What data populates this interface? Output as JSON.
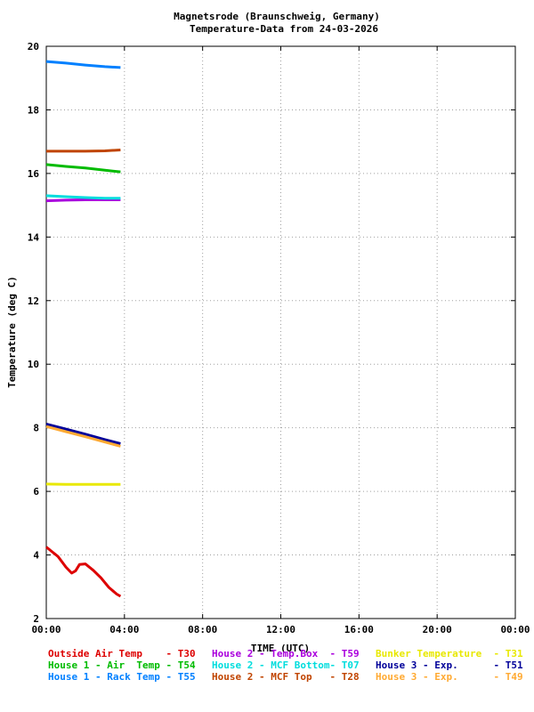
{
  "chart_data": {
    "type": "line",
    "title": "Magnetsrode (Braunschweig, Germany)",
    "subtitle": "Temperature-Data from 24-03-2026",
    "xlabel": "TIME (UTC)",
    "ylabel": "Temperature (deg C)",
    "xlim": [
      0,
      24
    ],
    "ylim": [
      2,
      20
    ],
    "grid": true,
    "legend_position": "bottom",
    "x_tick_labels": [
      "00:00",
      "04:00",
      "08:00",
      "12:00",
      "16:00",
      "20:00",
      "00:00"
    ],
    "y_tick_labels": [
      "2",
      "4",
      "6",
      "8",
      "10",
      "12",
      "14",
      "16",
      "18",
      "20"
    ],
    "series": [
      {
        "name": "Outside Air Temp",
        "sensor": "T30",
        "color": "#dd0000",
        "x": [
          0.0,
          0.3,
          0.6,
          1.0,
          1.3,
          1.5,
          1.7,
          2.0,
          2.4,
          2.8,
          3.2,
          3.6,
          3.8
        ],
        "y": [
          4.25,
          4.1,
          3.95,
          3.62,
          3.43,
          3.5,
          3.7,
          3.72,
          3.52,
          3.28,
          2.98,
          2.77,
          2.7
        ]
      },
      {
        "name": "House 1 - Air  Temp",
        "sensor": "T54",
        "color": "#00bb00",
        "x": [
          0.0,
          1.0,
          2.0,
          3.0,
          3.8
        ],
        "y": [
          16.28,
          16.22,
          16.17,
          16.1,
          16.05
        ]
      },
      {
        "name": "House 1 - Rack Temp",
        "sensor": "T55",
        "color": "#0080ff",
        "x": [
          0.0,
          1.0,
          2.0,
          3.0,
          3.8
        ],
        "y": [
          19.52,
          19.47,
          19.41,
          19.36,
          19.33
        ]
      },
      {
        "name": "House 2 - Temp.Box",
        "sensor": "T59",
        "color": "#aa00dd",
        "x": [
          0.0,
          1.0,
          2.0,
          3.0,
          3.8
        ],
        "y": [
          15.14,
          15.16,
          15.17,
          15.17,
          15.17
        ]
      },
      {
        "name": "House 2 - MCF Bottom",
        "sensor": "T07",
        "color": "#00dddd",
        "x": [
          0.0,
          1.0,
          2.0,
          3.0,
          3.8
        ],
        "y": [
          15.3,
          15.27,
          15.24,
          15.22,
          15.22
        ]
      },
      {
        "name": "House 2 - MCF Top",
        "sensor": "T28",
        "color": "#c04400",
        "x": [
          0.0,
          1.0,
          2.0,
          3.0,
          3.8
        ],
        "y": [
          16.7,
          16.7,
          16.7,
          16.71,
          16.74
        ]
      },
      {
        "name": "Bunker Temperature",
        "sensor": "T31",
        "color": "#e8e800",
        "x": [
          0.0,
          1.0,
          2.0,
          3.0,
          3.8
        ],
        "y": [
          6.23,
          6.22,
          6.22,
          6.22,
          6.22
        ]
      },
      {
        "name": "House 3 - Exp.",
        "sensor": "T51",
        "color": "#000099",
        "x": [
          0.0,
          1.0,
          2.0,
          3.0,
          3.8
        ],
        "y": [
          8.12,
          7.96,
          7.8,
          7.63,
          7.5
        ]
      },
      {
        "name": "House 3 - Exp.",
        "sensor": "T49",
        "color": "#ffaa33",
        "x": [
          0.0,
          1.0,
          2.0,
          3.0,
          3.8
        ],
        "y": [
          8.04,
          7.88,
          7.72,
          7.55,
          7.42
        ]
      }
    ]
  },
  "legend": {
    "rows": [
      [
        {
          "label": "Outside Air Temp    - T30",
          "color": "#dd0000"
        },
        {
          "label": "House 2 - Temp.Box  - T59",
          "color": "#aa00dd"
        },
        {
          "label": "Bunker Temperature  - T31",
          "color": "#e8e800"
        }
      ],
      [
        {
          "label": "House 1 - Air  Temp - T54",
          "color": "#00bb00"
        },
        {
          "label": "House 2 - MCF Bottom- T07",
          "color": "#00dddd"
        },
        {
          "label": "House 3 - Exp.      - T51",
          "color": "#000099"
        }
      ],
      [
        {
          "label": "House 1 - Rack Temp - T55",
          "color": "#0080ff"
        },
        {
          "label": "House 2 - MCF Top   - T28",
          "color": "#c04400"
        },
        {
          "label": "House 3 - Exp.      - T49",
          "color": "#ffaa33"
        }
      ]
    ]
  }
}
